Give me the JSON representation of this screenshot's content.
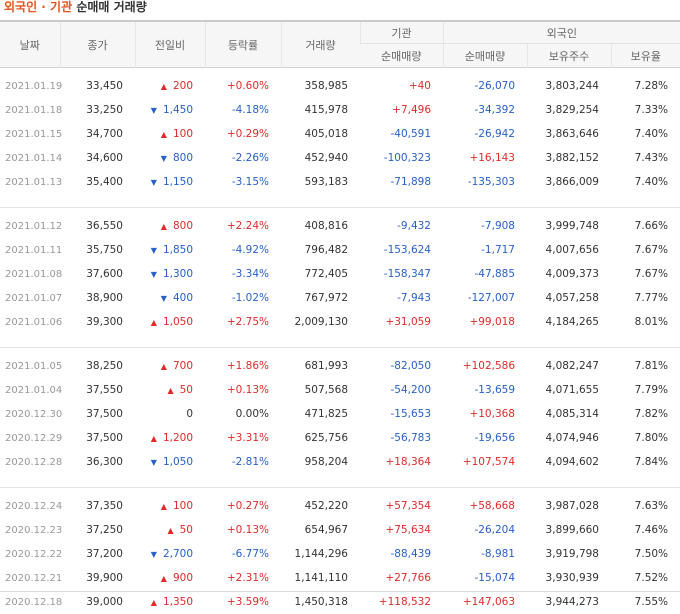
{
  "title": {
    "highlight": "외국인 · 기관",
    "rest": "순매매 거래량"
  },
  "headers": {
    "date": "날짜",
    "close": "종가",
    "change": "전일비",
    "rate": "등락률",
    "volume": "거래량",
    "inst_group": "기관",
    "inst_net": "순매매량",
    "foreign_group": "외국인",
    "foreign_net": "순매매량",
    "foreign_hold": "보유주수",
    "foreign_ratio": "보유율"
  },
  "colors": {
    "up": "#e12a2a",
    "down": "#2760c9",
    "accent": "#e4541e"
  },
  "groups": [
    [
      {
        "date": "2021.01.19",
        "close": "33,450",
        "dir": "up",
        "change": "200",
        "rate": "+0.60%",
        "volume": "358,985",
        "inst": "+40",
        "foreign": "-26,070",
        "hold": "3,803,244",
        "ratio": "7.28%"
      },
      {
        "date": "2021.01.18",
        "close": "33,250",
        "dir": "down",
        "change": "1,450",
        "rate": "-4.18%",
        "volume": "415,978",
        "inst": "+7,496",
        "foreign": "-34,392",
        "hold": "3,829,254",
        "ratio": "7.33%"
      },
      {
        "date": "2021.01.15",
        "close": "34,700",
        "dir": "up",
        "change": "100",
        "rate": "+0.29%",
        "volume": "405,018",
        "inst": "-40,591",
        "foreign": "-26,942",
        "hold": "3,863,646",
        "ratio": "7.40%"
      },
      {
        "date": "2021.01.14",
        "close": "34,600",
        "dir": "down",
        "change": "800",
        "rate": "-2.26%",
        "volume": "452,940",
        "inst": "-100,323",
        "foreign": "+16,143",
        "hold": "3,882,152",
        "ratio": "7.43%"
      },
      {
        "date": "2021.01.13",
        "close": "35,400",
        "dir": "down",
        "change": "1,150",
        "rate": "-3.15%",
        "volume": "593,183",
        "inst": "-71,898",
        "foreign": "-135,303",
        "hold": "3,866,009",
        "ratio": "7.40%"
      }
    ],
    [
      {
        "date": "2021.01.12",
        "close": "36,550",
        "dir": "up",
        "change": "800",
        "rate": "+2.24%",
        "volume": "408,816",
        "inst": "-9,432",
        "foreign": "-7,908",
        "hold": "3,999,748",
        "ratio": "7.66%"
      },
      {
        "date": "2021.01.11",
        "close": "35,750",
        "dir": "down",
        "change": "1,850",
        "rate": "-4.92%",
        "volume": "796,482",
        "inst": "-153,624",
        "foreign": "-1,717",
        "hold": "4,007,656",
        "ratio": "7.67%"
      },
      {
        "date": "2021.01.08",
        "close": "37,600",
        "dir": "down",
        "change": "1,300",
        "rate": "-3.34%",
        "volume": "772,405",
        "inst": "-158,347",
        "foreign": "-47,885",
        "hold": "4,009,373",
        "ratio": "7.67%"
      },
      {
        "date": "2021.01.07",
        "close": "38,900",
        "dir": "down",
        "change": "400",
        "rate": "-1.02%",
        "volume": "767,972",
        "inst": "-7,943",
        "foreign": "-127,007",
        "hold": "4,057,258",
        "ratio": "7.77%"
      },
      {
        "date": "2021.01.06",
        "close": "39,300",
        "dir": "up",
        "change": "1,050",
        "rate": "+2.75%",
        "volume": "2,009,130",
        "inst": "+31,059",
        "foreign": "+99,018",
        "hold": "4,184,265",
        "ratio": "8.01%"
      }
    ],
    [
      {
        "date": "2021.01.05",
        "close": "38,250",
        "dir": "up",
        "change": "700",
        "rate": "+1.86%",
        "volume": "681,993",
        "inst": "-82,050",
        "foreign": "+102,586",
        "hold": "4,082,247",
        "ratio": "7.81%"
      },
      {
        "date": "2021.01.04",
        "close": "37,550",
        "dir": "up",
        "change": "50",
        "rate": "+0.13%",
        "volume": "507,568",
        "inst": "-54,200",
        "foreign": "-13,659",
        "hold": "4,071,655",
        "ratio": "7.79%"
      },
      {
        "date": "2020.12.30",
        "close": "37,500",
        "dir": "none",
        "change": "0",
        "rate": "0.00%",
        "volume": "471,825",
        "inst": "-15,653",
        "foreign": "+10,368",
        "hold": "4,085,314",
        "ratio": "7.82%"
      },
      {
        "date": "2020.12.29",
        "close": "37,500",
        "dir": "up",
        "change": "1,200",
        "rate": "+3.31%",
        "volume": "625,756",
        "inst": "-56,783",
        "foreign": "-19,656",
        "hold": "4,074,946",
        "ratio": "7.80%"
      },
      {
        "date": "2020.12.28",
        "close": "36,300",
        "dir": "down",
        "change": "1,050",
        "rate": "-2.81%",
        "volume": "958,204",
        "inst": "+18,364",
        "foreign": "+107,574",
        "hold": "4,094,602",
        "ratio": "7.84%"
      }
    ],
    [
      {
        "date": "2020.12.24",
        "close": "37,350",
        "dir": "up",
        "change": "100",
        "rate": "+0.27%",
        "volume": "452,220",
        "inst": "+57,354",
        "foreign": "+58,668",
        "hold": "3,987,028",
        "ratio": "7.63%"
      },
      {
        "date": "2020.12.23",
        "close": "37,250",
        "dir": "up",
        "change": "50",
        "rate": "+0.13%",
        "volume": "654,967",
        "inst": "+75,634",
        "foreign": "-26,204",
        "hold": "3,899,660",
        "ratio": "7.46%"
      },
      {
        "date": "2020.12.22",
        "close": "37,200",
        "dir": "down",
        "change": "2,700",
        "rate": "-6.77%",
        "volume": "1,144,296",
        "inst": "-88,439",
        "foreign": "-8,981",
        "hold": "3,919,798",
        "ratio": "7.50%"
      },
      {
        "date": "2020.12.21",
        "close": "39,900",
        "dir": "up",
        "change": "900",
        "rate": "+2.31%",
        "volume": "1,141,110",
        "inst": "+27,766",
        "foreign": "-15,074",
        "hold": "3,930,939",
        "ratio": "7.52%"
      },
      {
        "date": "2020.12.18",
        "close": "39,000",
        "dir": "up",
        "change": "1,350",
        "rate": "+3.59%",
        "volume": "1,450,318",
        "inst": "+118,532",
        "foreign": "+147,063",
        "hold": "3,944,273",
        "ratio": "7.55%"
      }
    ]
  ]
}
